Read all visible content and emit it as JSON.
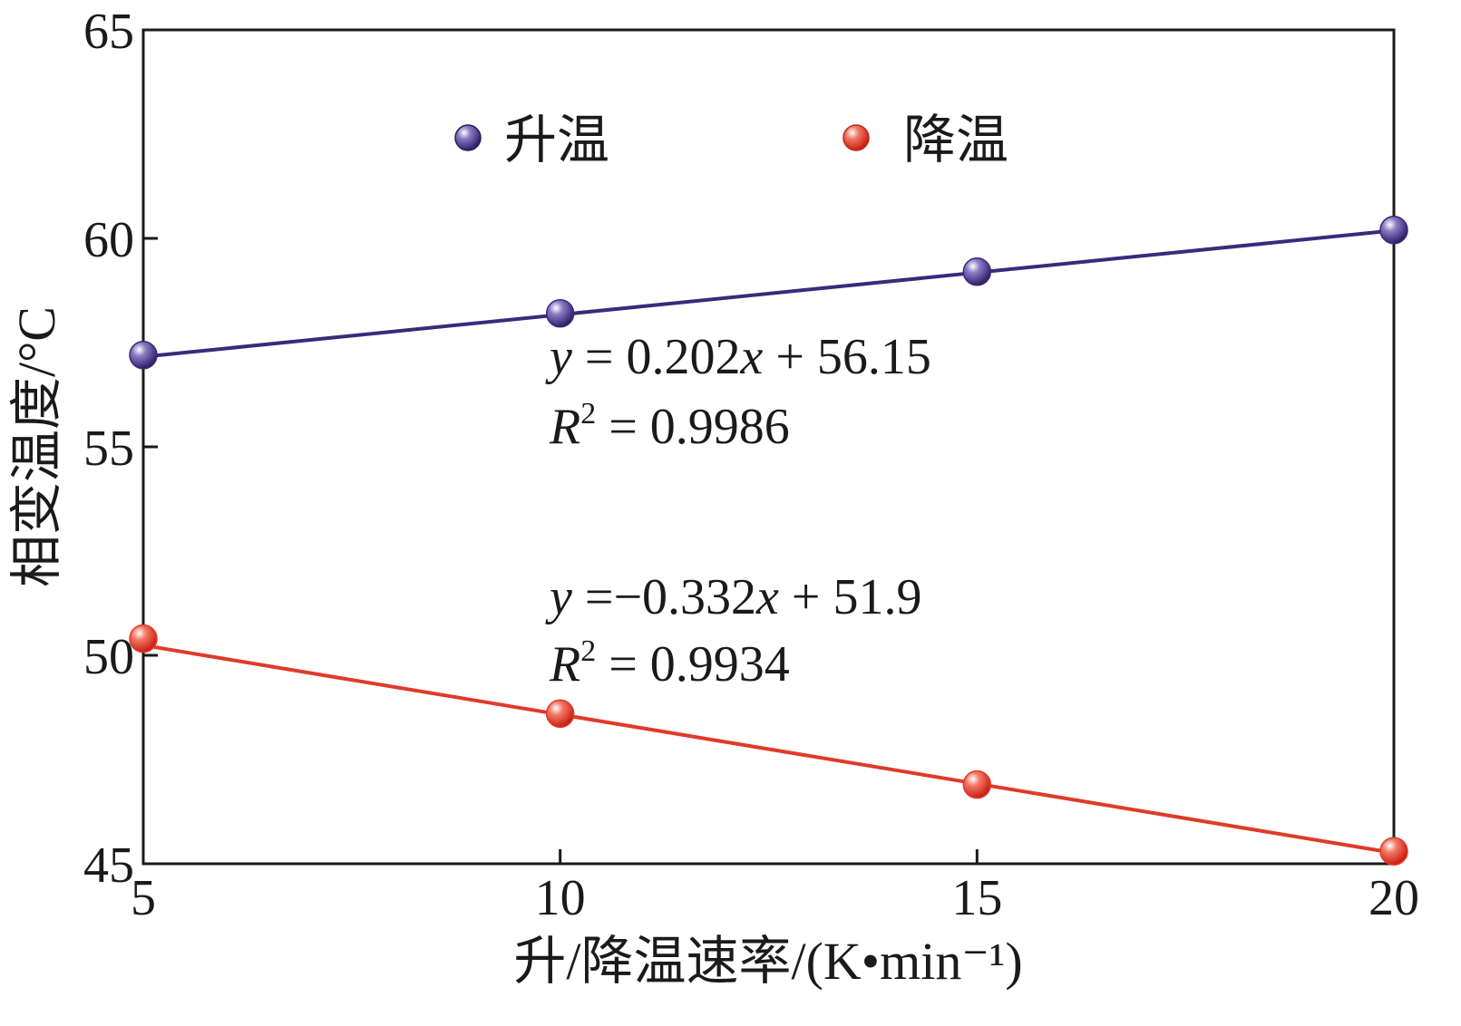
{
  "chart_data": {
    "type": "line",
    "title": "",
    "xlabel": "升/降温速率/(K•min⁻¹)",
    "ylabel": "相变温度/°C",
    "xlim": [
      5,
      20
    ],
    "ylim": [
      45,
      65
    ],
    "x_ticks": [
      5,
      10,
      15,
      20
    ],
    "y_ticks": [
      45,
      50,
      55,
      60,
      65
    ],
    "x_tick_labels": [
      "5",
      "10",
      "15",
      "20"
    ],
    "y_tick_labels": [
      "45",
      "50",
      "55",
      "60",
      "65"
    ],
    "grid": false,
    "legend_position": "top",
    "x": [
      5,
      10,
      15,
      20
    ],
    "series": [
      {
        "name": "升温",
        "values": [
          57.2,
          58.2,
          59.2,
          60.2
        ],
        "color": "#3a2a7a",
        "marker_color": "#5a4a96",
        "fit": {
          "slope": 0.202,
          "intercept": 56.15
        },
        "equation": {
          "lhs": "y",
          "rhs": " = 0.202",
          "var": "x",
          "tail": " + 56.15"
        },
        "r2": {
          "lhs": "R",
          "sup": "2",
          "rhs": " = 0.9986"
        }
      },
      {
        "name": "降温",
        "values": [
          50.4,
          48.6,
          46.9,
          45.3
        ],
        "color": "#e03a2a",
        "marker_color": "#ee5a48",
        "fit": {
          "slope": -0.332,
          "intercept": 51.9
        },
        "equation": {
          "lhs": "y",
          "rhs": " =−0.332",
          "var": "x",
          "tail": " + 51.9"
        },
        "r2": {
          "lhs": "R",
          "sup": "2",
          "rhs": " = 0.9934"
        }
      }
    ]
  }
}
